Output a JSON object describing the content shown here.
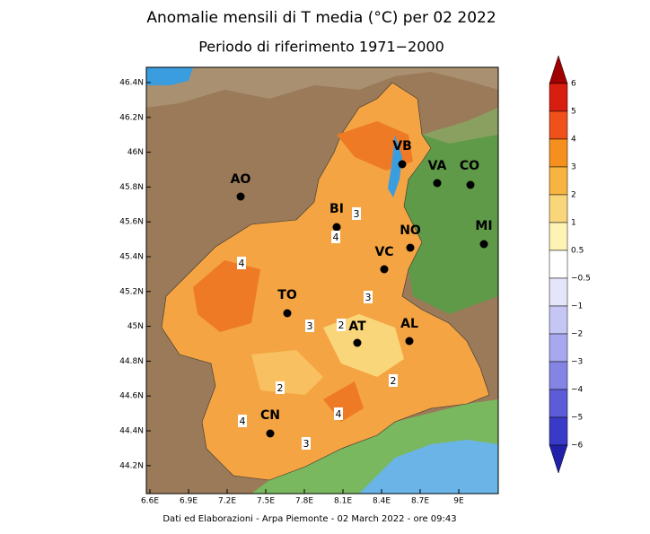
{
  "title": "Anomalie mensili di T media (°C) per 02 2022",
  "subtitle": "Periodo di riferimento 1971−2000",
  "map": {
    "lat_labels": [
      "46.4N",
      "46.2N",
      "46N",
      "45.8N",
      "45.6N",
      "45.4N",
      "45.2N",
      "45N",
      "44.8N",
      "44.6N",
      "44.4N",
      "44.2N"
    ],
    "lon_labels": [
      "6.6E",
      "6.9E",
      "7.2E",
      "7.5E",
      "7.8E",
      "8.1E",
      "8.4E",
      "8.7E",
      "9E"
    ],
    "cities": [
      "VB",
      "VA",
      "CO",
      "AO",
      "BI",
      "MI",
      "NO",
      "VC",
      "TO",
      "AT",
      "AL",
      "CN"
    ],
    "contour_labels": [
      "3",
      "4",
      "4",
      "3",
      "3",
      "2",
      "2",
      "2",
      "4",
      "4",
      "3"
    ]
  },
  "colorbar": {
    "labels": [
      "6",
      "5",
      "4",
      "3",
      "2",
      "1",
      "0.5",
      "−0.5",
      "−1",
      "−2",
      "−3",
      "−4",
      "−5",
      "−6"
    ],
    "colors": [
      "#a00000",
      "#d81e10",
      "#f0501a",
      "#f5901e",
      "#f8b440",
      "#fad67a",
      "#fdf3b4",
      "#ffffff",
      "#e4e4fa",
      "#c6c6f4",
      "#a8a8ee",
      "#8484e4",
      "#5c5cd8",
      "#3a3ac8",
      "#2020a8"
    ]
  },
  "footer": "Dati ed Elaborazioni - Arpa Piemonte - 02 March 2022 - ore 09:43"
}
